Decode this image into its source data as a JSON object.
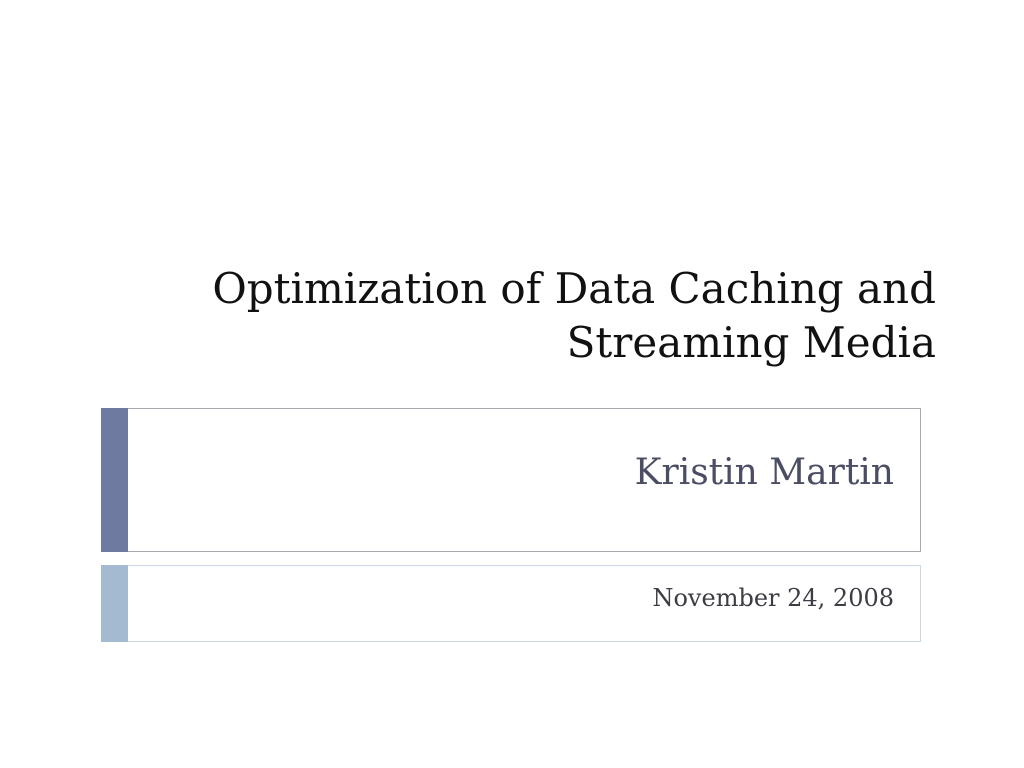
{
  "slide": {
    "title_lines": [
      "Optimization of Data Caching and",
      "Streaming Media"
    ],
    "author": "Kristin Martin",
    "date": "November 24, 2008"
  },
  "colors": {
    "author_accent": "#6f7aa0",
    "date_accent": "#a3bad1",
    "title_text": "#111111",
    "author_text": "#4a4d63"
  }
}
